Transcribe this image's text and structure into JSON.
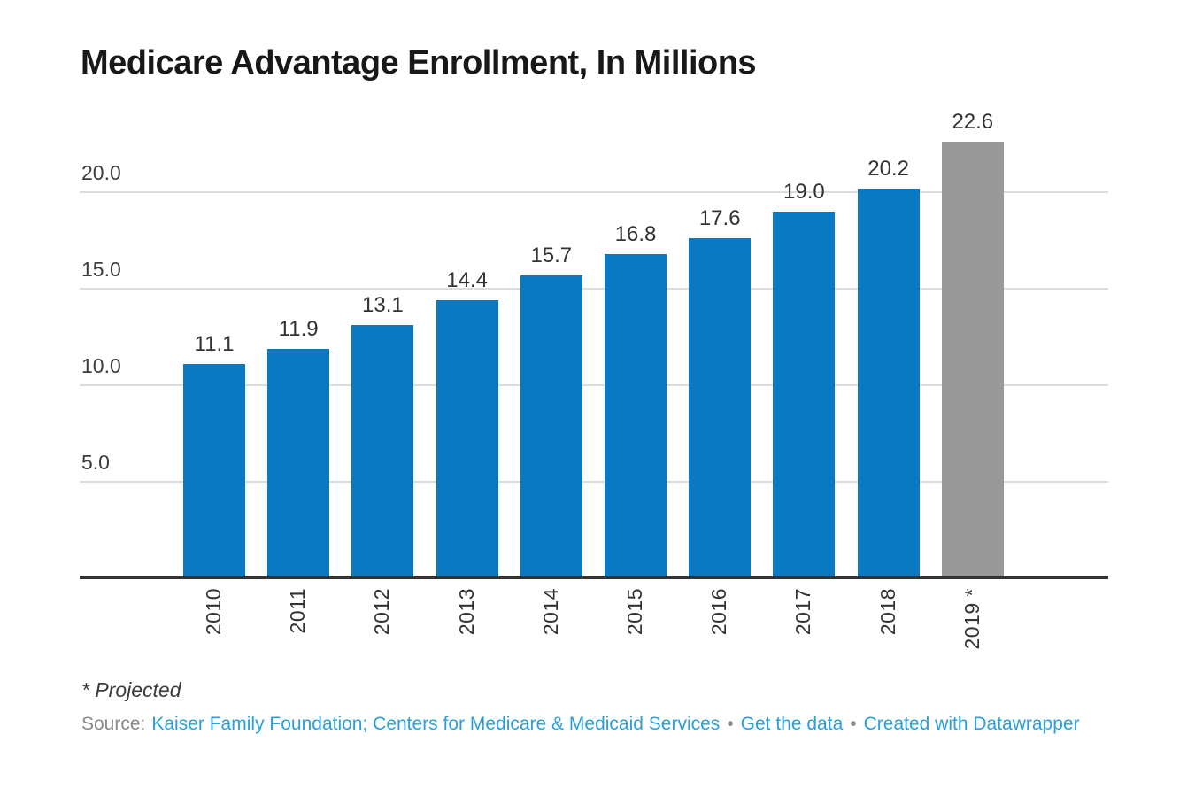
{
  "header": {
    "title": "Medicare Advantage Enrollment, In Millions"
  },
  "chart_data": {
    "type": "bar",
    "title": "Medicare Advantage Enrollment, In Millions",
    "categories": [
      "2010",
      "2011",
      "2012",
      "2013",
      "2014",
      "2015",
      "2016",
      "2017",
      "2018",
      "2019 *"
    ],
    "values": [
      11.1,
      11.9,
      13.1,
      14.4,
      15.7,
      16.8,
      17.6,
      19.0,
      20.2,
      22.6
    ],
    "value_labels": [
      "11.1",
      "11.9",
      "13.1",
      "14.4",
      "15.7",
      "16.8",
      "17.6",
      "19.0",
      "20.2",
      "22.6"
    ],
    "projected_index": 9,
    "yticks": [
      5,
      10,
      15,
      20
    ],
    "ytick_labels": [
      "5.0",
      "10.0",
      "15.0",
      "20.0"
    ],
    "ylim": [
      0,
      23.1
    ],
    "xlabel": "",
    "ylabel": "",
    "grid": true,
    "legend": "none",
    "bar_color_default": "#0b78c2",
    "bar_color_projected": "#999999"
  },
  "footer": {
    "note": "* Projected",
    "source_label": "Source:",
    "source_link": "Kaiser Family Foundation; Centers for Medicare & Medicaid Services",
    "separator": "•",
    "get_data_label": "Get the data",
    "credit_label": "Created with Datawrapper"
  },
  "colors": {
    "background": "#ffffff",
    "bar_blue": "#0b78c2",
    "bar_gray": "#999999",
    "gridline": "#dcdcdc",
    "axis": "#333333",
    "title_text": "#181818",
    "label_text": "#333333",
    "tick_text": "#3d3d3d",
    "muted_text": "#8a8a8a",
    "link": "#2aa0da"
  }
}
